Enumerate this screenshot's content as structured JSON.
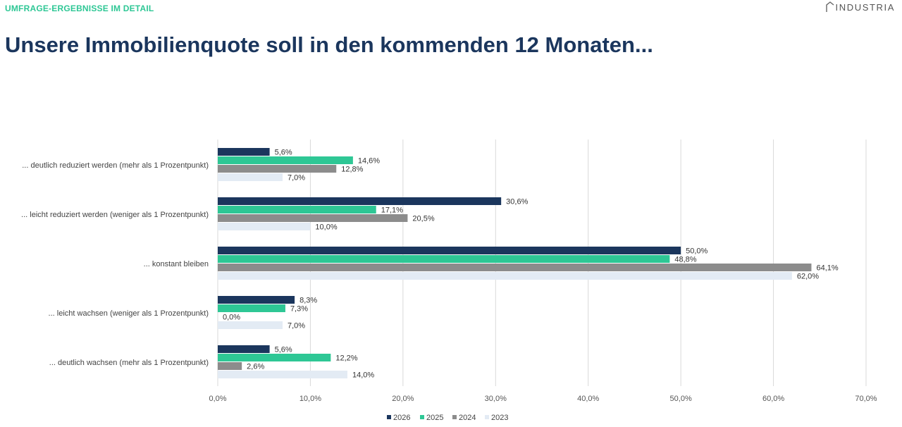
{
  "header": {
    "overline": "UMFRAGE-ERGEBNISSE IM DETAIL",
    "logo_text": "INDUSTRIA",
    "title": "Unsere Immobilienquote soll in den kommenden 12 Monaten..."
  },
  "colors": {
    "accent": "#2ec795",
    "title": "#1b365d"
  },
  "chart_data": {
    "type": "bar",
    "orientation": "horizontal",
    "title": "",
    "xlabel": "",
    "ylabel": "",
    "xlim": [
      0,
      70
    ],
    "x_ticks": [
      0,
      10,
      20,
      30,
      40,
      50,
      60,
      70
    ],
    "x_tick_labels": [
      "0,0%",
      "10,0%",
      "20,0%",
      "30,0%",
      "40,0%",
      "50,0%",
      "60,0%",
      "70,0%"
    ],
    "grid": "vertical",
    "legend_position": "bottom",
    "categories": [
      "... deutlich reduziert werden (mehr als 1 Prozentpunkt)",
      "... leicht reduziert werden (weniger als 1 Prozentpunkt)",
      "... konstant bleiben",
      "... leicht wachsen (weniger als 1 Prozentpunkt)",
      "... deutlich wachsen (mehr als 1 Prozentpunkt)"
    ],
    "series": [
      {
        "name": "2026",
        "color": "#1b365d",
        "values": [
          5.6,
          30.6,
          50.0,
          8.3,
          5.6
        ],
        "labels": [
          "5,6%",
          "30,6%",
          "50,0%",
          "8,3%",
          "5,6%"
        ]
      },
      {
        "name": "2025",
        "color": "#2ec795",
        "values": [
          14.6,
          17.1,
          48.8,
          7.3,
          12.2
        ],
        "labels": [
          "14,6%",
          "17,1%",
          "48,8%",
          "7,3%",
          "12,2%"
        ]
      },
      {
        "name": "2024",
        "color": "#8c8c8c",
        "values": [
          12.8,
          20.5,
          64.1,
          0.0,
          2.6
        ],
        "labels": [
          "12,8%",
          "20,5%",
          "64,1%",
          "0,0%",
          "2,6%"
        ]
      },
      {
        "name": "2023",
        "color": "#e3ebf4",
        "values": [
          7.0,
          10.0,
          62.0,
          7.0,
          14.0
        ],
        "labels": [
          "7,0%",
          "10,0%",
          "62,0%",
          "7,0%",
          "14,0%"
        ]
      }
    ]
  }
}
